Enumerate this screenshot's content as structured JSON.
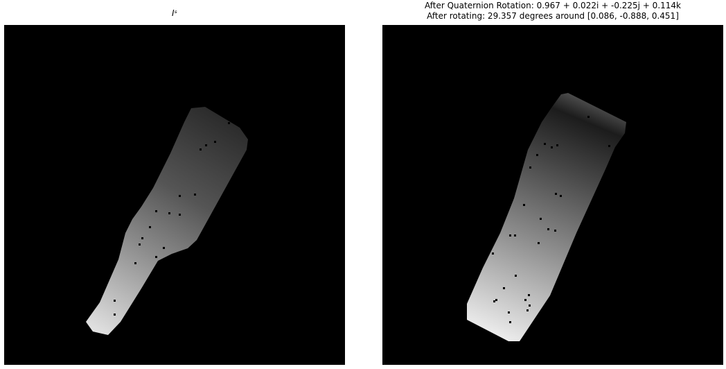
{
  "left_panel": {
    "title": "Iˢ"
  },
  "right_panel": {
    "title_line1": "After Quaternion Rotation: 0.967 + 0.022i + -0.225j + 0.114k",
    "title_line2": "After rotating: 29.357 degrees around [0.086, -0.888, 0.451]"
  },
  "colors": {
    "background": "#000000",
    "figure_bg": "#ffffff"
  }
}
